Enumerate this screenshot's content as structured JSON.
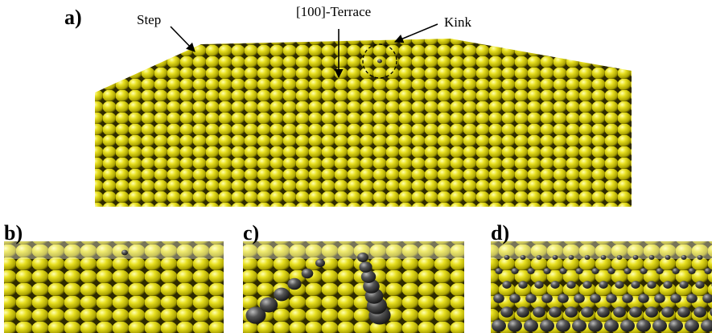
{
  "panels": [
    {
      "label": "a)",
      "annotations": [
        "Step",
        "[100]-Terrace",
        "Kink"
      ]
    },
    {
      "label": "b)"
    },
    {
      "label": "c)"
    },
    {
      "label": "d)"
    }
  ]
}
